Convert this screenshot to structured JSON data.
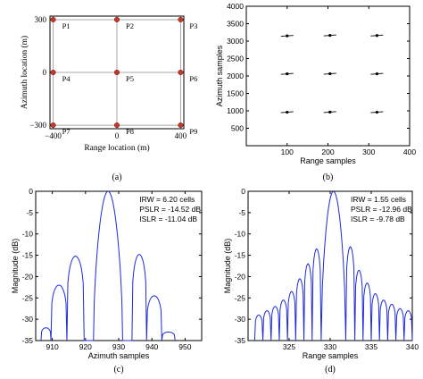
{
  "chart_data": [
    {
      "id": "a",
      "type": "scatter",
      "panel_label": "(a)",
      "xlabel": "Range location (m)",
      "ylabel": "Azimuth location (m)",
      "xlim": [
        -420,
        420
      ],
      "ylim": [
        -320,
        320
      ],
      "xticks": [
        -400,
        0,
        400
      ],
      "xtick_labels": [
        "−400",
        "0",
        "400"
      ],
      "yticks": [
        -300,
        0,
        300
      ],
      "ytick_labels": [
        "−300",
        "0",
        "300"
      ],
      "points": [
        {
          "name": "P1",
          "x": -400,
          "y": 300
        },
        {
          "name": "P2",
          "x": 0,
          "y": 300
        },
        {
          "name": "P3",
          "x": 400,
          "y": 300
        },
        {
          "name": "P4",
          "x": -400,
          "y": 0
        },
        {
          "name": "P5",
          "x": 0,
          "y": 0
        },
        {
          "name": "P6",
          "x": 400,
          "y": 0
        },
        {
          "name": "P7",
          "x": -400,
          "y": -300
        },
        {
          "name": "P8",
          "x": 0,
          "y": -300
        },
        {
          "name": "P9",
          "x": 400,
          "y": -300
        }
      ],
      "marker_color": "#c0392b",
      "grid_color": "#a8a8a8"
    },
    {
      "id": "b",
      "type": "scatter",
      "panel_label": "(b)",
      "xlabel": "Range samples",
      "ylabel": "Azimuth samples",
      "xlim": [
        0,
        400
      ],
      "ylim": [
        0,
        4000
      ],
      "xticks": [
        100,
        200,
        300,
        400
      ],
      "yticks": [
        500,
        1000,
        1500,
        2000,
        2500,
        3000,
        3500,
        4000
      ],
      "points": [
        {
          "x": 100,
          "y": 3150
        },
        {
          "x": 205,
          "y": 3165
        },
        {
          "x": 320,
          "y": 3160
        },
        {
          "x": 100,
          "y": 2060
        },
        {
          "x": 205,
          "y": 2065
        },
        {
          "x": 320,
          "y": 2060
        },
        {
          "x": 100,
          "y": 960
        },
        {
          "x": 205,
          "y": 965
        },
        {
          "x": 320,
          "y": 960
        }
      ]
    },
    {
      "id": "c",
      "type": "line",
      "panel_label": "(c)",
      "xlabel": "Azimuth samples",
      "ylabel": "Magnitude (dB)",
      "xlim": [
        905,
        955
      ],
      "ylim": [
        -35,
        0
      ],
      "xticks": [
        910,
        920,
        930,
        940,
        950
      ],
      "yticks": [
        0,
        -5,
        -10,
        -15,
        -20,
        -25,
        -30,
        -35
      ],
      "annotations": [
        "IRW = 6.20 cells",
        "PSLR = -14.52 dB",
        "ISLR = -11.04 dB"
      ],
      "line_color": "#1f2bd6",
      "mainlobe_center": 926.8,
      "mainlobe_halfwidth": 4.4,
      "sidelobes": [
        {
          "lo": 914.4,
          "hi": 919.6,
          "peak": -15.2
        },
        {
          "lo": 909.6,
          "hi": 914.4,
          "peak": -22.0
        },
        {
          "lo": 906.6,
          "hi": 909.6,
          "peak": -32.0
        },
        {
          "lo": 934.0,
          "hi": 938.4,
          "peak": -14.8
        },
        {
          "lo": 938.4,
          "hi": 943.0,
          "peak": -24.5
        },
        {
          "lo": 943.0,
          "hi": 947.0,
          "peak": -33.0
        }
      ]
    },
    {
      "id": "d",
      "type": "line",
      "panel_label": "(d)",
      "xlabel": "Range samples",
      "ylabel": "Magnitude (dB)",
      "xlim": [
        320,
        340
      ],
      "ylim": [
        -35,
        0
      ],
      "xticks": [
        325,
        330,
        335,
        340
      ],
      "yticks": [
        0,
        -5,
        -10,
        -15,
        -20,
        -25,
        -30,
        -35
      ],
      "annotations": [
        "IRW = 1.55 cells",
        "PSLR = -12.96 dB",
        "ISLR = -9.78 dB"
      ],
      "line_color": "#1f2bd6",
      "mainlobe_center": 330.4,
      "mainlobe_halfwidth": 1.5,
      "sidelobes": [
        {
          "lo": 331.9,
          "hi": 333.0,
          "peak": -13.0
        },
        {
          "lo": 333.0,
          "hi": 334.0,
          "peak": -18.5
        },
        {
          "lo": 334.0,
          "hi": 335.0,
          "peak": -21.5
        },
        {
          "lo": 335.0,
          "hi": 336.0,
          "peak": -24.0
        },
        {
          "lo": 336.0,
          "hi": 337.0,
          "peak": -25.5
        },
        {
          "lo": 337.0,
          "hi": 338.0,
          "peak": -26.5
        },
        {
          "lo": 338.0,
          "hi": 339.0,
          "peak": -27.5
        },
        {
          "lo": 339.0,
          "hi": 340.0,
          "peak": -28.0
        },
        {
          "lo": 327.8,
          "hi": 328.9,
          "peak": -13.5
        },
        {
          "lo": 326.8,
          "hi": 327.8,
          "peak": -17.0
        },
        {
          "lo": 325.8,
          "hi": 326.8,
          "peak": -20.5
        },
        {
          "lo": 324.8,
          "hi": 325.8,
          "peak": -23.5
        },
        {
          "lo": 323.8,
          "hi": 324.8,
          "peak": -25.5
        },
        {
          "lo": 322.8,
          "hi": 323.8,
          "peak": -27.0
        },
        {
          "lo": 321.8,
          "hi": 322.8,
          "peak": -28.0
        },
        {
          "lo": 320.8,
          "hi": 321.8,
          "peak": -29.0
        }
      ]
    }
  ]
}
